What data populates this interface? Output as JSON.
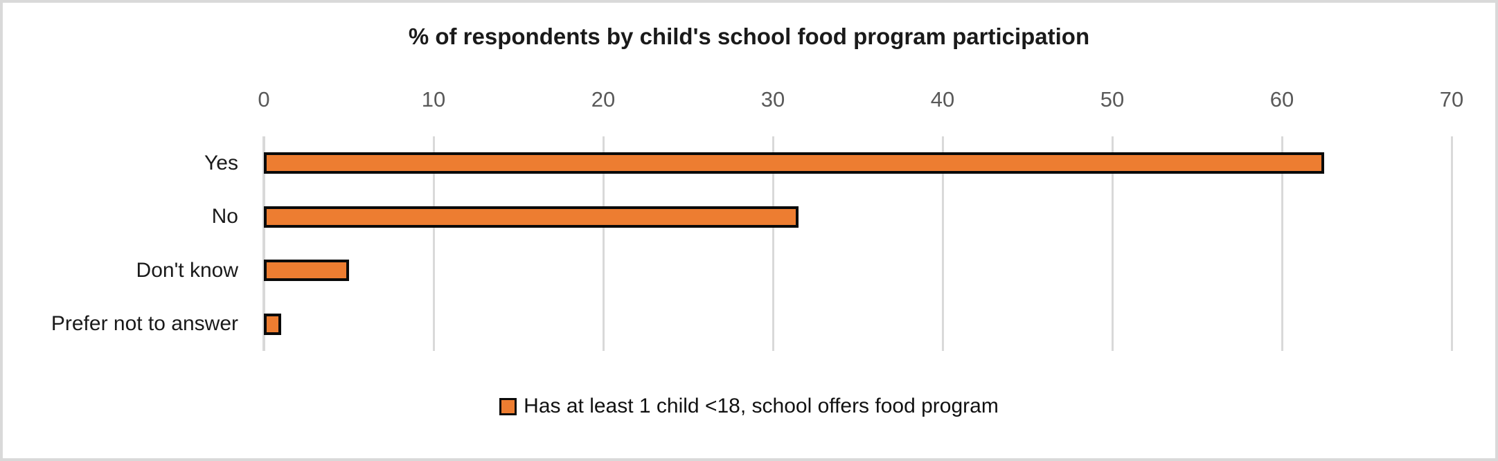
{
  "chart_data": {
    "type": "bar",
    "orientation": "horizontal",
    "title": "% of respondents by child's school food program participation",
    "categories": [
      "Yes",
      "No",
      "Don't know",
      "Prefer not to answer"
    ],
    "values": [
      62.5,
      31.5,
      5,
      1
    ],
    "xlabel": "",
    "ylabel": "",
    "xlim": [
      0,
      70
    ],
    "x_ticks": [
      0,
      10,
      20,
      30,
      40,
      50,
      60,
      70
    ],
    "axis_position": "top",
    "grid": true,
    "legend": {
      "position": "bottom",
      "entries": [
        {
          "label": "Has at least 1 child <18, school offers food program",
          "color": "#ed7d31"
        }
      ]
    },
    "colors": {
      "bar_fill": "#ed7d31",
      "bar_border": "#0a0a0a",
      "gridline": "#d9d9d9",
      "tick_label": "#595959",
      "title_text": "#1a1a1a",
      "category_label": "#1a1a1a",
      "legend_text": "#111111",
      "frame_border": "#d9d9d9",
      "background": "#ffffff"
    }
  }
}
